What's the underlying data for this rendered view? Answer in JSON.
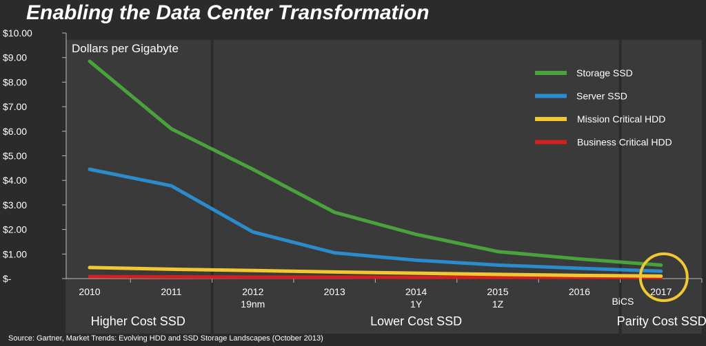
{
  "page_title": "Enabling the Data Center Transformation",
  "source": "Source: Gartner, Market Trends: Evolving HDD and SSD Storage Landscapes (October 2013)",
  "colors": {
    "background": "#2b2b2b",
    "panel": "#3a3a3a",
    "storage_ssd": "#4aa23c",
    "server_ssd": "#2a8ccc",
    "mission_critical_hdd": "#f2c832",
    "business_critical_hdd": "#d22020",
    "highlight_circle": "#f2c832"
  },
  "chart_data": {
    "type": "line",
    "title": "",
    "ylabel": "Dollars per Gigabyte",
    "xlabel": "",
    "ylim": [
      0,
      10
    ],
    "yticks": [
      "$-",
      "$1.00",
      "$2.00",
      "$3.00",
      "$4.00",
      "$5.00",
      "$6.00",
      "$7.00",
      "$8.00",
      "$9.00",
      "$10.00"
    ],
    "categories": [
      "2010",
      "2011",
      "2012",
      "2013",
      "2014",
      "2015",
      "2016",
      "2017"
    ],
    "category_sublabels": [
      "",
      "",
      "19nm",
      "",
      "1Y",
      "1Z",
      "BiCS",
      ""
    ],
    "grid": false,
    "legend_position": "top-right",
    "series": [
      {
        "name": "Storage SSD",
        "values": [
          8.85,
          6.1,
          4.45,
          2.7,
          1.8,
          1.1,
          0.8,
          0.55
        ]
      },
      {
        "name": "Server SSD",
        "values": [
          4.45,
          3.78,
          1.9,
          1.05,
          0.75,
          0.55,
          0.42,
          0.3
        ]
      },
      {
        "name": "Mission Critical  HDD",
        "values": [
          0.45,
          0.38,
          0.33,
          0.27,
          0.22,
          0.17,
          0.13,
          0.1
        ]
      },
      {
        "name": "Business Critical  HDD",
        "values": [
          0.08,
          0.07,
          0.06,
          0.06,
          0.05,
          0.05,
          0.05,
          0.04
        ]
      }
    ],
    "phases": [
      {
        "label": "Higher Cost SSD",
        "categories": [
          "2010",
          "2011"
        ]
      },
      {
        "label": "Lower Cost SSD",
        "categories": [
          "2012",
          "2013",
          "2014",
          "2015",
          "2016"
        ]
      },
      {
        "label": "Parity Cost SSD",
        "categories": [
          "2017"
        ]
      }
    ],
    "highlight_category": "2017"
  }
}
